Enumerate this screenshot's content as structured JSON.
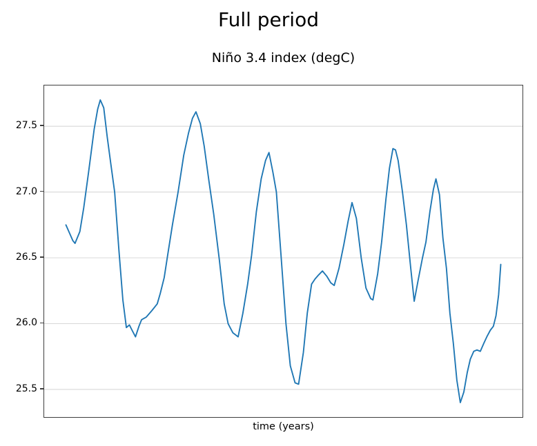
{
  "figure": {
    "suptitle": "Full period",
    "axes_title": "Niño 3.4 index (degC)",
    "xlabel": "time (years)"
  },
  "colors": {
    "line": "#1f77b4",
    "grid": "#d8d8d8",
    "spine": "#3d3d3d",
    "text": "#000000"
  },
  "chart_data": {
    "type": "line",
    "title": "Niño 3.4 index (degC)",
    "suptitle": "Full period",
    "xlabel": "time (years)",
    "ylabel": "",
    "legend": "none",
    "grid": "horizontal",
    "ylim": [
      25.29,
      27.81
    ],
    "yticks": [
      25.5,
      26.0,
      26.5,
      27.0,
      27.5
    ],
    "ytick_format_decimals": 1,
    "xticks": [],
    "x_margin_frac": 0.05,
    "x_units": "time (years), tick labels not shown; t is normalized 0..1 across the series",
    "series": [
      {
        "name": "Niño 3.4 index (degC)",
        "color": "#1f77b4",
        "points": [
          [
            0.0,
            26.75
          ],
          [
            0.016,
            26.63
          ],
          [
            0.021,
            26.61
          ],
          [
            0.032,
            26.7
          ],
          [
            0.041,
            26.88
          ],
          [
            0.052,
            27.15
          ],
          [
            0.065,
            27.48
          ],
          [
            0.073,
            27.63
          ],
          [
            0.079,
            27.7
          ],
          [
            0.087,
            27.64
          ],
          [
            0.095,
            27.42
          ],
          [
            0.103,
            27.22
          ],
          [
            0.112,
            27.0
          ],
          [
            0.122,
            26.55
          ],
          [
            0.131,
            26.18
          ],
          [
            0.139,
            25.97
          ],
          [
            0.146,
            25.99
          ],
          [
            0.152,
            25.95
          ],
          [
            0.16,
            25.9
          ],
          [
            0.168,
            25.98
          ],
          [
            0.174,
            26.03
          ],
          [
            0.185,
            26.05
          ],
          [
            0.198,
            26.1
          ],
          [
            0.21,
            26.15
          ],
          [
            0.217,
            26.23
          ],
          [
            0.226,
            26.35
          ],
          [
            0.234,
            26.52
          ],
          [
            0.245,
            26.75
          ],
          [
            0.258,
            27.0
          ],
          [
            0.271,
            27.28
          ],
          [
            0.282,
            27.45
          ],
          [
            0.291,
            27.56
          ],
          [
            0.299,
            27.61
          ],
          [
            0.309,
            27.52
          ],
          [
            0.318,
            27.35
          ],
          [
            0.329,
            27.08
          ],
          [
            0.34,
            26.83
          ],
          [
            0.353,
            26.48
          ],
          [
            0.364,
            26.15
          ],
          [
            0.373,
            26.0
          ],
          [
            0.384,
            25.93
          ],
          [
            0.396,
            25.9
          ],
          [
            0.407,
            26.08
          ],
          [
            0.418,
            26.3
          ],
          [
            0.427,
            26.52
          ],
          [
            0.438,
            26.85
          ],
          [
            0.449,
            27.1
          ],
          [
            0.459,
            27.24
          ],
          [
            0.467,
            27.3
          ],
          [
            0.476,
            27.15
          ],
          [
            0.484,
            27.0
          ],
          [
            0.495,
            26.5
          ],
          [
            0.506,
            26.0
          ],
          [
            0.516,
            25.68
          ],
          [
            0.527,
            25.55
          ],
          [
            0.535,
            25.54
          ],
          [
            0.546,
            25.78
          ],
          [
            0.555,
            26.08
          ],
          [
            0.565,
            26.3
          ],
          [
            0.573,
            26.34
          ],
          [
            0.581,
            26.37
          ],
          [
            0.59,
            26.4
          ],
          [
            0.6,
            26.36
          ],
          [
            0.609,
            26.31
          ],
          [
            0.617,
            26.29
          ],
          [
            0.628,
            26.42
          ],
          [
            0.639,
            26.6
          ],
          [
            0.649,
            26.78
          ],
          [
            0.658,
            26.92
          ],
          [
            0.668,
            26.8
          ],
          [
            0.679,
            26.5
          ],
          [
            0.69,
            26.27
          ],
          [
            0.701,
            26.19
          ],
          [
            0.706,
            26.18
          ],
          [
            0.717,
            26.38
          ],
          [
            0.726,
            26.62
          ],
          [
            0.736,
            26.95
          ],
          [
            0.744,
            27.18
          ],
          [
            0.752,
            27.33
          ],
          [
            0.758,
            27.32
          ],
          [
            0.764,
            27.24
          ],
          [
            0.774,
            27.0
          ],
          [
            0.783,
            26.75
          ],
          [
            0.793,
            26.42
          ],
          [
            0.801,
            26.17
          ],
          [
            0.81,
            26.33
          ],
          [
            0.82,
            26.5
          ],
          [
            0.828,
            26.62
          ],
          [
            0.837,
            26.85
          ],
          [
            0.845,
            27.02
          ],
          [
            0.851,
            27.1
          ],
          [
            0.859,
            26.98
          ],
          [
            0.867,
            26.65
          ],
          [
            0.875,
            26.42
          ],
          [
            0.883,
            26.08
          ],
          [
            0.891,
            25.85
          ],
          [
            0.899,
            25.57
          ],
          [
            0.907,
            25.4
          ],
          [
            0.915,
            25.48
          ],
          [
            0.923,
            25.63
          ],
          [
            0.93,
            25.73
          ],
          [
            0.938,
            25.79
          ],
          [
            0.945,
            25.8
          ],
          [
            0.953,
            25.79
          ],
          [
            0.961,
            25.85
          ],
          [
            0.968,
            25.9
          ],
          [
            0.976,
            25.95
          ],
          [
            0.983,
            25.98
          ],
          [
            0.989,
            26.06
          ],
          [
            0.995,
            26.22
          ],
          [
            1.0,
            26.45
          ]
        ]
      }
    ]
  }
}
